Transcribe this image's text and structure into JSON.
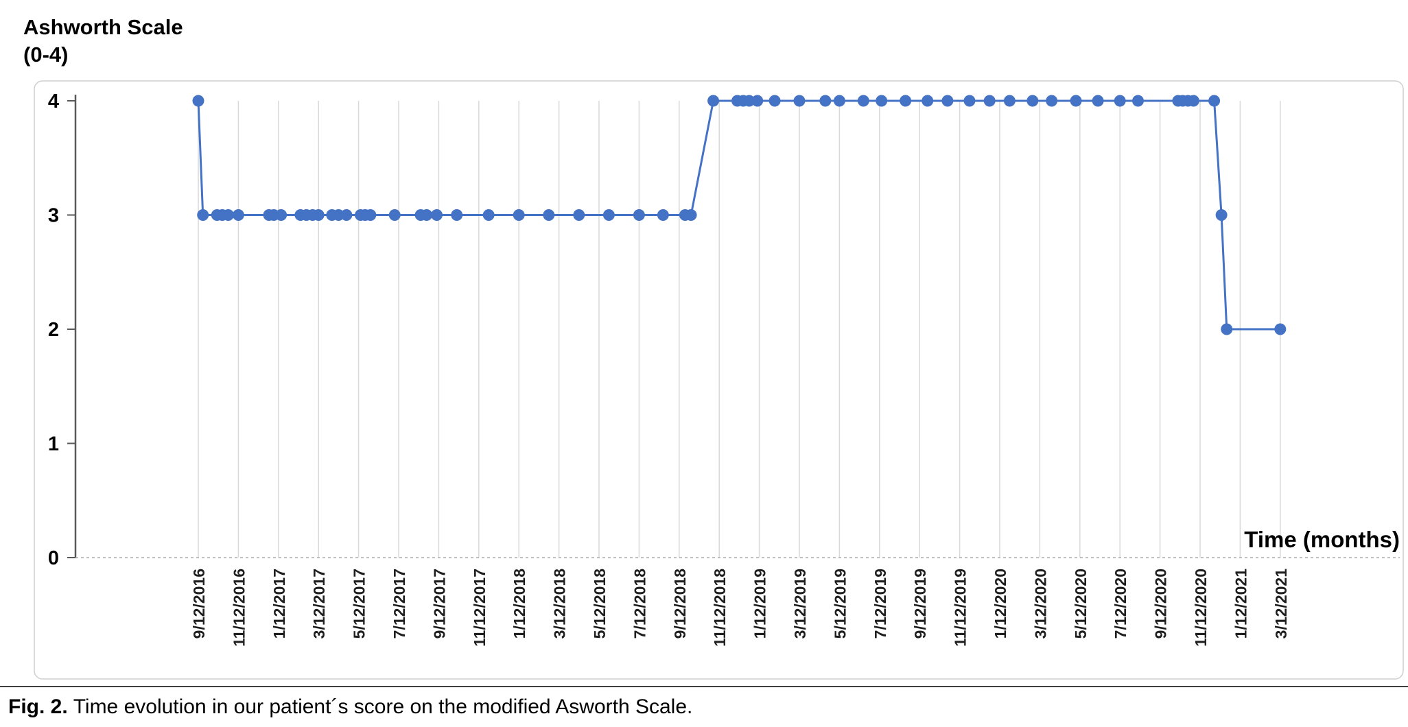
{
  "figure": {
    "y_axis_title_line1": "Ashworth Scale",
    "y_axis_title_line2": "(0-4)",
    "x_axis_title": "Time (months)",
    "caption_label": "Fig. 2.",
    "caption_text": "Time evolution in our patient´s score on the modified Asworth Scale."
  },
  "chart_data": {
    "type": "line",
    "title": "",
    "ylabel": "Ashworth Scale (0-4)",
    "xlabel": "Time (months)",
    "ylim": [
      0,
      4
    ],
    "yticks": [
      0,
      1,
      2,
      3,
      4
    ],
    "x_tick_interval_months": 2,
    "grid": "vertical",
    "legend": "none",
    "line_color": "#4472C4",
    "xticks": [
      "9/12/2016",
      "11/12/2016",
      "1/12/2017",
      "3/12/2017",
      "5/12/2017",
      "7/12/2017",
      "9/12/2017",
      "11/12/2017",
      "1/12/2018",
      "3/12/2018",
      "5/12/2018",
      "7/12/2018",
      "9/12/2018",
      "11/12/2018",
      "1/12/2019",
      "3/12/2019",
      "5/12/2019",
      "7/12/2019",
      "9/12/2019",
      "11/12/2019",
      "1/12/2020",
      "3/12/2020",
      "5/12/2020",
      "7/12/2020",
      "9/12/2020",
      "11/12/2020",
      "1/12/2021",
      "3/12/2021"
    ],
    "points": [
      {
        "date": "9/12/2016",
        "value": 4
      },
      {
        "date": "9/19/2016",
        "value": 3
      },
      {
        "date": "10/10/2016",
        "value": 3
      },
      {
        "date": "10/18/2016",
        "value": 3
      },
      {
        "date": "10/27/2016",
        "value": 3
      },
      {
        "date": "11/12/2016",
        "value": 3
      },
      {
        "date": "12/28/2016",
        "value": 3
      },
      {
        "date": "1/5/2017",
        "value": 3
      },
      {
        "date": "1/16/2017",
        "value": 3
      },
      {
        "date": "2/15/2017",
        "value": 3
      },
      {
        "date": "2/24/2017",
        "value": 3
      },
      {
        "date": "3/3/2017",
        "value": 3
      },
      {
        "date": "3/12/2017",
        "value": 3
      },
      {
        "date": "4/2/2017",
        "value": 3
      },
      {
        "date": "4/12/2017",
        "value": 3
      },
      {
        "date": "4/24/2017",
        "value": 3
      },
      {
        "date": "5/15/2017",
        "value": 3
      },
      {
        "date": "5/22/2017",
        "value": 3
      },
      {
        "date": "5/30/2017",
        "value": 3
      },
      {
        "date": "7/6/2017",
        "value": 3
      },
      {
        "date": "8/15/2017",
        "value": 3
      },
      {
        "date": "8/24/2017",
        "value": 3
      },
      {
        "date": "9/9/2017",
        "value": 3
      },
      {
        "date": "10/9/2017",
        "value": 3
      },
      {
        "date": "11/27/2017",
        "value": 3
      },
      {
        "date": "1/12/2018",
        "value": 3
      },
      {
        "date": "2/27/2018",
        "value": 3
      },
      {
        "date": "4/12/2018",
        "value": 3
      },
      {
        "date": "5/27/2018",
        "value": 3
      },
      {
        "date": "7/12/2018",
        "value": 3
      },
      {
        "date": "8/18/2018",
        "value": 3
      },
      {
        "date": "9/21/2018",
        "value": 3
      },
      {
        "date": "9/30/2018",
        "value": 3
      },
      {
        "date": "11/3/2018",
        "value": 4
      },
      {
        "date": "12/9/2018",
        "value": 4
      },
      {
        "date": "12/18/2018",
        "value": 4
      },
      {
        "date": "12/27/2018",
        "value": 4
      },
      {
        "date": "1/9/2019",
        "value": 4
      },
      {
        "date": "2/5/2019",
        "value": 4
      },
      {
        "date": "3/12/2019",
        "value": 4
      },
      {
        "date": "4/21/2019",
        "value": 4
      },
      {
        "date": "5/12/2019",
        "value": 4
      },
      {
        "date": "6/18/2019",
        "value": 4
      },
      {
        "date": "7/15/2019",
        "value": 4
      },
      {
        "date": "8/21/2019",
        "value": 4
      },
      {
        "date": "9/24/2019",
        "value": 4
      },
      {
        "date": "10/24/2019",
        "value": 4
      },
      {
        "date": "11/27/2019",
        "value": 4
      },
      {
        "date": "12/27/2019",
        "value": 4
      },
      {
        "date": "1/27/2020",
        "value": 4
      },
      {
        "date": "3/1/2020",
        "value": 4
      },
      {
        "date": "3/30/2020",
        "value": 4
      },
      {
        "date": "5/6/2020",
        "value": 4
      },
      {
        "date": "6/9/2020",
        "value": 4
      },
      {
        "date": "7/12/2020",
        "value": 4
      },
      {
        "date": "8/9/2020",
        "value": 4
      },
      {
        "date": "10/9/2020",
        "value": 4
      },
      {
        "date": "10/16/2020",
        "value": 4
      },
      {
        "date": "10/24/2020",
        "value": 4
      },
      {
        "date": "11/2/2020",
        "value": 4
      },
      {
        "date": "12/3/2020",
        "value": 4
      },
      {
        "date": "12/14/2020",
        "value": 3
      },
      {
        "date": "12/22/2020",
        "value": 2
      },
      {
        "date": "3/12/2021",
        "value": 2
      }
    ]
  }
}
